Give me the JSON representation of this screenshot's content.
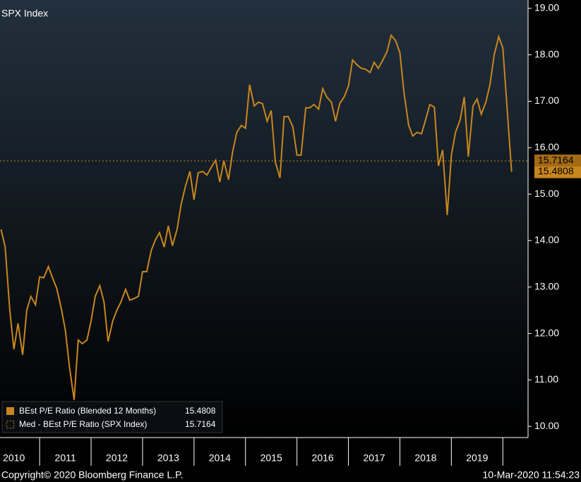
{
  "chart_data": {
    "type": "line",
    "title": "SPX Index",
    "series": [
      {
        "name": "BEst P/E Ratio (Blended 12 Months)",
        "color": "#c8861e",
        "values": [
          14.24,
          13.86,
          12.5,
          11.66,
          12.22,
          11.54,
          12.5,
          12.8,
          12.62,
          13.22,
          13.2,
          13.44,
          13.2,
          12.98,
          12.54,
          12.07,
          11.28,
          10.57,
          11.86,
          11.78,
          11.86,
          12.27,
          12.8,
          13.03,
          12.68,
          11.83,
          12.27,
          12.5,
          12.68,
          12.95,
          12.72,
          12.75,
          12.8,
          13.33,
          13.33,
          13.79,
          14.02,
          14.17,
          13.86,
          14.32,
          13.89,
          14.24,
          14.78,
          15.16,
          15.49,
          14.88,
          15.46,
          15.49,
          15.41,
          15.57,
          15.73,
          15.26,
          15.72,
          15.31,
          15.91,
          16.33,
          16.48,
          16.42,
          17.36,
          16.9,
          16.98,
          16.95,
          16.57,
          16.8,
          15.69,
          15.35,
          16.67,
          16.67,
          16.45,
          15.84,
          15.84,
          16.86,
          16.86,
          16.93,
          16.83,
          17.27,
          17.09,
          16.98,
          16.57,
          16.95,
          17.1,
          17.33,
          17.89,
          17.78,
          17.71,
          17.69,
          17.62,
          17.84,
          17.71,
          17.89,
          18.07,
          18.42,
          18.3,
          18.04,
          17.18,
          16.48,
          16.25,
          16.33,
          16.3,
          16.6,
          16.93,
          16.87,
          15.61,
          15.95,
          14.55,
          15.84,
          16.33,
          16.6,
          17.09,
          15.81,
          16.9,
          17.05,
          16.72,
          16.98,
          17.36,
          17.99,
          18.39,
          18.15,
          16.9,
          15.4808
        ]
      }
    ],
    "median": {
      "name": "Med - BEst P/E Ratio (SPX Index)",
      "value": 15.7164,
      "color": "#c8861e"
    },
    "x": [
      2010.25,
      2010.33,
      2010.42,
      2010.5,
      2010.58,
      2010.67,
      2010.75,
      2010.83,
      2010.92,
      2011,
      2011.08,
      2011.17,
      2011.25,
      2011.33,
      2011.42,
      2011.5,
      2011.58,
      2011.67,
      2011.75,
      2011.83,
      2011.92,
      2012,
      2012.08,
      2012.17,
      2012.25,
      2012.33,
      2012.42,
      2012.5,
      2012.58,
      2012.67,
      2012.75,
      2012.83,
      2012.92,
      2013,
      2013.08,
      2013.17,
      2013.25,
      2013.33,
      2013.42,
      2013.5,
      2013.58,
      2013.67,
      2013.75,
      2013.83,
      2013.92,
      2014,
      2014.08,
      2014.17,
      2014.25,
      2014.33,
      2014.42,
      2014.5,
      2014.58,
      2014.67,
      2014.75,
      2014.83,
      2014.92,
      2015,
      2015.08,
      2015.17,
      2015.25,
      2015.33,
      2015.42,
      2015.5,
      2015.58,
      2015.67,
      2015.75,
      2015.83,
      2015.92,
      2016,
      2016.08,
      2016.17,
      2016.25,
      2016.33,
      2016.42,
      2016.5,
      2016.58,
      2016.67,
      2016.75,
      2016.83,
      2016.92,
      2017,
      2017.08,
      2017.17,
      2017.25,
      2017.33,
      2017.42,
      2017.5,
      2017.58,
      2017.67,
      2017.75,
      2017.83,
      2017.92,
      2018,
      2018.08,
      2018.17,
      2018.25,
      2018.33,
      2018.42,
      2018.5,
      2018.58,
      2018.67,
      2018.75,
      2018.83,
      2018.92,
      2019,
      2019.08,
      2019.17,
      2019.25,
      2019.33,
      2019.42,
      2019.5,
      2019.58,
      2019.67,
      2019.75,
      2019.83,
      2019.92,
      2020,
      2020.08,
      2020.17
    ],
    "xlim": [
      2010.23,
      2020.49
    ],
    "xticks": [
      {
        "value": 2010.5,
        "label": "2010"
      },
      {
        "value": 2011.5,
        "label": "2011"
      },
      {
        "value": 2012.5,
        "label": "2012"
      },
      {
        "value": 2013.5,
        "label": "2013"
      },
      {
        "value": 2014.5,
        "label": "2014"
      },
      {
        "value": 2015.5,
        "label": "2015"
      },
      {
        "value": 2016.5,
        "label": "2016"
      },
      {
        "value": 2017.5,
        "label": "2017"
      },
      {
        "value": 2018.5,
        "label": "2018"
      },
      {
        "value": 2019.5,
        "label": "2019"
      }
    ],
    "ylim": [
      9.76,
      19.18
    ],
    "yticks": [
      {
        "value": 10,
        "label": "10.00"
      },
      {
        "value": 11,
        "label": "11.00"
      },
      {
        "value": 12,
        "label": "12.00"
      },
      {
        "value": 13,
        "label": "13.00"
      },
      {
        "value": 14,
        "label": "14.00"
      },
      {
        "value": 15,
        "label": "15.00"
      },
      {
        "value": 16,
        "label": "16.00"
      },
      {
        "value": 17,
        "label": "17.00"
      },
      {
        "value": 18,
        "label": "18.00"
      },
      {
        "value": 19,
        "label": "19.00"
      }
    ],
    "footer_left": "Copyright© 2020 Bloomberg Finance L.P.",
    "footer_right": "10-Mar-2020 11:54:23"
  }
}
